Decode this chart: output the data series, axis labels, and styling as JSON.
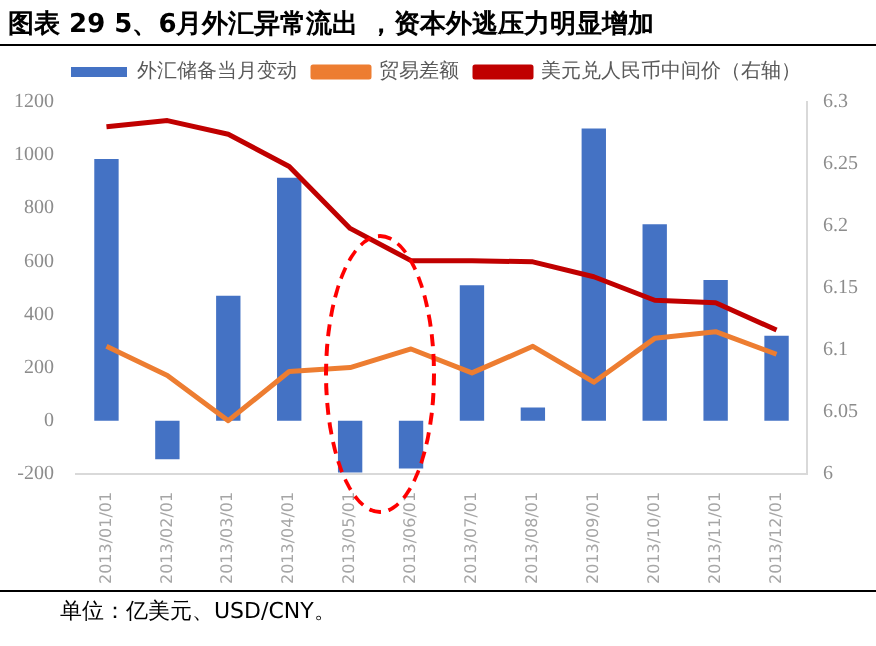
{
  "chart_data": {
    "type": "bar",
    "title": "图表 29 5、6月外汇异常流出 ，资本外逃压力明显增加",
    "categories": [
      "2013/01/01",
      "2013/02/01",
      "2013/03/01",
      "2013/04/01",
      "2013/05/01",
      "2013/06/01",
      "2013/07/01",
      "2013/08/01",
      "2013/09/01",
      "2013/10/01",
      "2013/11/01",
      "2013/12/01"
    ],
    "series": [
      {
        "name": "外汇储备当月变动",
        "color": "#4472c4",
        "values": [
          985,
          -145,
          470,
          915,
          -195,
          -180,
          510,
          50,
          1100,
          740,
          530,
          320
        ]
      },
      {
        "name": "贸易差额",
        "type": "line",
        "color": "#ed7d31",
        "values": [
          280,
          170,
          0,
          185,
          200,
          270,
          180,
          280,
          145,
          310,
          335,
          250
        ]
      },
      {
        "name": "美元兑人民币中间价（右轴）",
        "type": "line",
        "axis": "y2",
        "color": "#c00000",
        "values": [
          6.28,
          6.285,
          6.274,
          6.248,
          6.198,
          6.172,
          6.172,
          6.171,
          6.159,
          6.14,
          6.138,
          6.116
        ]
      }
    ],
    "ylim": [
      -200,
      1200
    ],
    "yticks": [
      -200,
      0,
      200,
      400,
      600,
      800,
      1000,
      1200
    ],
    "y2lim": [
      6,
      6.3
    ],
    "y2ticks": [
      6,
      6.05,
      6.1,
      6.15,
      6.2,
      6.25,
      6.3
    ],
    "grid": false,
    "legend": "top",
    "marker": "none",
    "annotations": [
      "单位：亿美元、USD/CNY。"
    ]
  }
}
